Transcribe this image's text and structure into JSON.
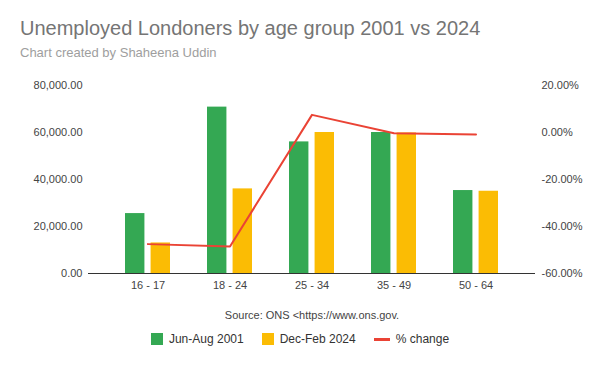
{
  "chart_data": {
    "type": "bar",
    "title": "Unemployed Londoners by age group 2001 vs 2024",
    "subtitle": "Chart created by Shaheena Uddin",
    "x_label": "Source: ONS <https://www.ons.gov.",
    "categories": [
      "16 - 17",
      "18 - 24",
      "25 - 34",
      "35 - 49",
      "50 - 64"
    ],
    "series": [
      {
        "name": "Jun-Aug 2001",
        "color": "#34a853",
        "values": [
          25500,
          70800,
          56000,
          60000,
          35300
        ]
      },
      {
        "name": "Dec-Feb 2024",
        "color": "#fbbc04",
        "values": [
          13000,
          36000,
          60000,
          59800,
          35000
        ]
      },
      {
        "name": "% change",
        "color": "#ea4335",
        "type": "line",
        "axis": "y2",
        "values": [
          -47.5,
          -48.5,
          7.5,
          -0.3,
          -0.8
        ]
      }
    ],
    "ylim": [
      0,
      80000
    ],
    "yticks": [
      {
        "value": 0,
        "label": "0.00"
      },
      {
        "value": 20000,
        "label": "20,000.00"
      },
      {
        "value": 40000,
        "label": "40,000.00"
      },
      {
        "value": 60000,
        "label": "60,000.00"
      },
      {
        "value": 80000,
        "label": "80,000.00"
      }
    ],
    "y2lim": [
      -60,
      20
    ],
    "y2ticks": [
      {
        "value": -60,
        "label": "-60.00%"
      },
      {
        "value": -40,
        "label": "-40.00%"
      },
      {
        "value": -20,
        "label": "-20.00%"
      },
      {
        "value": 0,
        "label": "0.00%"
      },
      {
        "value": 20,
        "label": "20.00%"
      }
    ],
    "grid": false,
    "legend": "bottom"
  }
}
